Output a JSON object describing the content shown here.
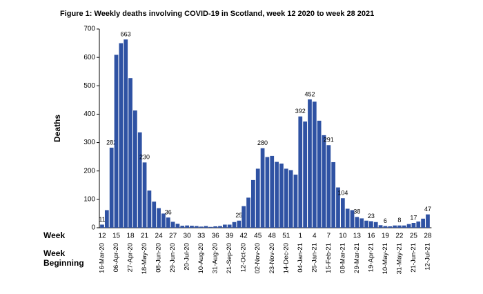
{
  "chart_data": {
    "type": "bar",
    "title": "Figure 1: Weekly deaths involving COVID-19 in Scotland, week 12 2020 to week 28 2021",
    "y_label": "Deaths",
    "x_label": "Week",
    "x2_label": "Week Beginning",
    "color": "#2f52a3",
    "ylim": [
      0,
      700
    ],
    "yticks": [
      0,
      100,
      200,
      300,
      400,
      500,
      600,
      700
    ],
    "categories": [
      "12",
      null,
      null,
      "15",
      null,
      null,
      "18",
      null,
      null,
      "21",
      null,
      null,
      "24",
      null,
      null,
      "27",
      null,
      null,
      "30",
      null,
      null,
      "33",
      null,
      null,
      "36",
      null,
      null,
      "39",
      null,
      null,
      "42",
      null,
      null,
      "45",
      null,
      null,
      "48",
      null,
      null,
      "51",
      null,
      null,
      "1",
      null,
      null,
      "4",
      null,
      null,
      "7",
      null,
      null,
      "10",
      null,
      null,
      "13",
      null,
      null,
      "16",
      null,
      null,
      "19",
      null,
      null,
      "22",
      null,
      null,
      "25",
      null,
      null,
      "28"
    ],
    "week_beginning": [
      "16-Mar-20",
      null,
      null,
      "06-Apr-20",
      null,
      null,
      "27-Apr-20",
      null,
      null,
      "18-May-20",
      null,
      null,
      "08-Jun-20",
      null,
      null,
      "29-Jun-20",
      null,
      null,
      "20-Jul-20",
      null,
      null,
      "10-Aug-20",
      null,
      null,
      "31-Aug-20",
      null,
      null,
      "21-Sep-20",
      null,
      null,
      "12-Oct-20",
      null,
      null,
      "02-Nov-20",
      null,
      null,
      "23-Nov-20",
      null,
      null,
      "14-Dec-20",
      null,
      null,
      "04-Jan-21",
      null,
      null,
      "25-Jan-21",
      null,
      null,
      "15-Feb-21",
      null,
      null,
      "08-Mar-21",
      null,
      null,
      "29-Mar-21",
      null,
      null,
      "19-Apr-21",
      null,
      null,
      "10-May-21",
      null,
      null,
      "31-May-21",
      null,
      null,
      "21-Jun-21",
      null,
      null,
      "12-Jul-21"
    ],
    "values": [
      11,
      62,
      282,
      609,
      650,
      663,
      527,
      413,
      336,
      230,
      131,
      92,
      69,
      50,
      36,
      21,
      14,
      7,
      8,
      7,
      6,
      4,
      6,
      3,
      5,
      6,
      11,
      11,
      20,
      25,
      76,
      106,
      168,
      208,
      280,
      249,
      253,
      232,
      226,
      208,
      203,
      187,
      392,
      374,
      452,
      444,
      377,
      326,
      291,
      231,
      142,
      104,
      67,
      62,
      38,
      33,
      25,
      23,
      20,
      9,
      6,
      5,
      8,
      8,
      8,
      13,
      17,
      22,
      32,
      47
    ],
    "value_labels": [
      "11",
      null,
      "282",
      null,
      null,
      "663",
      null,
      null,
      null,
      "230",
      null,
      null,
      null,
      null,
      "36",
      null,
      null,
      null,
      null,
      null,
      null,
      null,
      null,
      null,
      null,
      null,
      null,
      null,
      null,
      "25",
      null,
      null,
      null,
      null,
      "280",
      null,
      null,
      null,
      null,
      null,
      null,
      null,
      "392",
      null,
      "452",
      null,
      null,
      null,
      "291",
      null,
      null,
      "104",
      null,
      null,
      "38",
      null,
      null,
      "23",
      null,
      null,
      "6",
      null,
      null,
      "8",
      null,
      null,
      "17",
      null,
      null,
      "47"
    ]
  }
}
